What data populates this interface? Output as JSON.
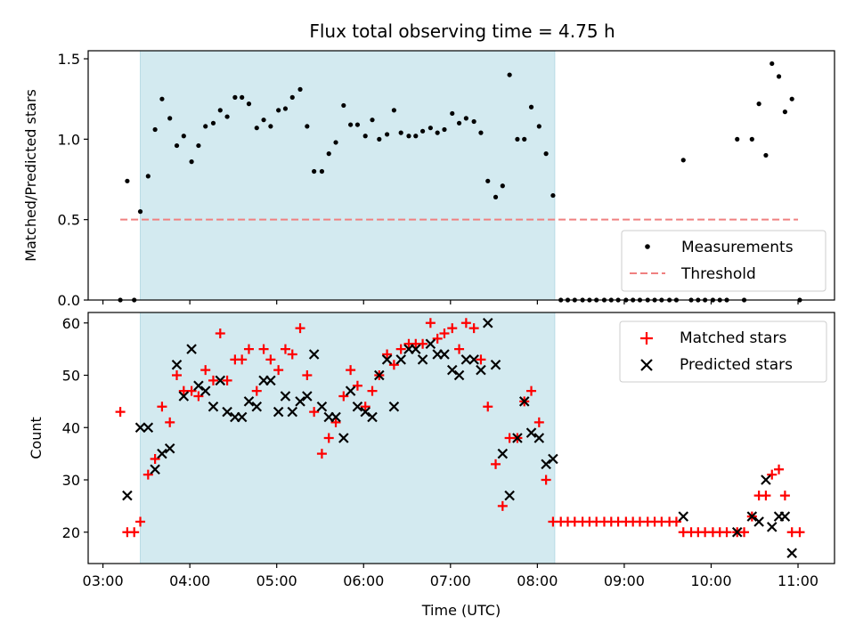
{
  "chart_data": [
    {
      "type": "scatter",
      "title": "Flux total observing time = 4.75 h",
      "xlabel": "",
      "ylabel": "Matched/Predicted stars",
      "xlim": [
        2.83,
        11.42
      ],
      "ylim": [
        0,
        1.55
      ],
      "yticks": [
        0,
        0.5,
        1.0,
        1.5
      ],
      "ytick_labels": [
        "0.0",
        "0.5",
        "1.0",
        "1.5"
      ],
      "xticks": [
        3,
        4,
        5,
        6,
        7,
        8,
        9,
        10,
        11
      ],
      "shaded_span": [
        3.43,
        8.2
      ],
      "shade_color": "#d3eaf0",
      "legend": {
        "position": "lower right",
        "entries": [
          "Measurements",
          "Threshold"
        ]
      },
      "threshold": {
        "name": "Threshold",
        "y": 0.5,
        "x": [
          3.2,
          11.0
        ],
        "color": "#f08080"
      },
      "series": [
        {
          "name": "Measurements",
          "color": "#000000",
          "points": [
            [
              3.2,
              0.0
            ],
            [
              3.28,
              0.74
            ],
            [
              3.36,
              0.0
            ],
            [
              3.43,
              0.55
            ],
            [
              3.52,
              0.77
            ],
            [
              3.6,
              1.06
            ],
            [
              3.68,
              1.25
            ],
            [
              3.77,
              1.13
            ],
            [
              3.85,
              0.96
            ],
            [
              3.93,
              1.02
            ],
            [
              4.02,
              0.86
            ],
            [
              4.1,
              0.96
            ],
            [
              4.18,
              1.08
            ],
            [
              4.27,
              1.1
            ],
            [
              4.35,
              1.18
            ],
            [
              4.43,
              1.14
            ],
            [
              4.52,
              1.26
            ],
            [
              4.6,
              1.26
            ],
            [
              4.68,
              1.22
            ],
            [
              4.77,
              1.07
            ],
            [
              4.85,
              1.12
            ],
            [
              4.93,
              1.08
            ],
            [
              5.02,
              1.18
            ],
            [
              5.1,
              1.19
            ],
            [
              5.18,
              1.26
            ],
            [
              5.27,
              1.31
            ],
            [
              5.35,
              1.08
            ],
            [
              5.43,
              0.8
            ],
            [
              5.52,
              0.8
            ],
            [
              5.6,
              0.91
            ],
            [
              5.68,
              0.98
            ],
            [
              5.77,
              1.21
            ],
            [
              5.85,
              1.09
            ],
            [
              5.93,
              1.09
            ],
            [
              6.02,
              1.02
            ],
            [
              6.1,
              1.12
            ],
            [
              6.18,
              1.0
            ],
            [
              6.27,
              1.03
            ],
            [
              6.35,
              1.18
            ],
            [
              6.43,
              1.04
            ],
            [
              6.52,
              1.02
            ],
            [
              6.6,
              1.02
            ],
            [
              6.68,
              1.05
            ],
            [
              6.77,
              1.07
            ],
            [
              6.85,
              1.04
            ],
            [
              6.93,
              1.06
            ],
            [
              7.02,
              1.16
            ],
            [
              7.1,
              1.1
            ],
            [
              7.18,
              1.13
            ],
            [
              7.27,
              1.11
            ],
            [
              7.35,
              1.04
            ],
            [
              7.43,
              0.74
            ],
            [
              7.52,
              0.64
            ],
            [
              7.6,
              0.71
            ],
            [
              7.68,
              1.4
            ],
            [
              7.77,
              1.0
            ],
            [
              7.85,
              1.0
            ],
            [
              7.93,
              1.2
            ],
            [
              8.02,
              1.08
            ],
            [
              8.1,
              0.91
            ],
            [
              8.18,
              0.65
            ],
            [
              8.27,
              0.0
            ],
            [
              8.35,
              0.0
            ],
            [
              8.43,
              0.0
            ],
            [
              8.52,
              0.0
            ],
            [
              8.6,
              0.0
            ],
            [
              8.68,
              0.0
            ],
            [
              8.77,
              0.0
            ],
            [
              8.85,
              0.0
            ],
            [
              8.93,
              0.0
            ],
            [
              9.02,
              0.0
            ],
            [
              9.1,
              0.0
            ],
            [
              9.18,
              0.0
            ],
            [
              9.27,
              0.0
            ],
            [
              9.35,
              0.0
            ],
            [
              9.43,
              0.0
            ],
            [
              9.52,
              0.0
            ],
            [
              9.6,
              0.0
            ],
            [
              9.68,
              0.87
            ],
            [
              9.77,
              0.0
            ],
            [
              9.85,
              0.0
            ],
            [
              9.93,
              0.0
            ],
            [
              10.02,
              0.0
            ],
            [
              10.1,
              0.0
            ],
            [
              10.18,
              0.0
            ],
            [
              10.3,
              1.0
            ],
            [
              10.38,
              0.0
            ],
            [
              10.47,
              1.0
            ],
            [
              10.55,
              1.22
            ],
            [
              10.63,
              0.9
            ],
            [
              10.7,
              1.47
            ],
            [
              10.78,
              1.39
            ],
            [
              10.85,
              1.17
            ],
            [
              10.93,
              1.25
            ],
            [
              11.02,
              0.0
            ]
          ]
        }
      ]
    },
    {
      "type": "scatter",
      "title": "",
      "xlabel": "Time (UTC)",
      "ylabel": "Count",
      "xlim": [
        2.83,
        11.42
      ],
      "ylim": [
        14,
        62
      ],
      "yticks": [
        20,
        30,
        40,
        50,
        60
      ],
      "ytick_labels": [
        "20",
        "30",
        "40",
        "50",
        "60"
      ],
      "xticks": [
        3,
        4,
        5,
        6,
        7,
        8,
        9,
        10,
        11
      ],
      "xtick_labels": [
        "03:00",
        "04:00",
        "05:00",
        "06:00",
        "07:00",
        "08:00",
        "09:00",
        "10:00",
        "11:00"
      ],
      "shaded_span": [
        3.43,
        8.2
      ],
      "shade_color": "#d3eaf0",
      "legend": {
        "position": "upper right",
        "entries": [
          "Matched stars",
          "Predicted stars"
        ]
      },
      "series": [
        {
          "name": "Matched stars",
          "marker": "plus",
          "color": "#ff0000",
          "points": [
            [
              3.2,
              43
            ],
            [
              3.28,
              20
            ],
            [
              3.36,
              20
            ],
            [
              3.43,
              22
            ],
            [
              3.52,
              31
            ],
            [
              3.6,
              34
            ],
            [
              3.68,
              44
            ],
            [
              3.77,
              41
            ],
            [
              3.85,
              50
            ],
            [
              3.93,
              47
            ],
            [
              4.02,
              47
            ],
            [
              4.1,
              46
            ],
            [
              4.18,
              51
            ],
            [
              4.27,
              49
            ],
            [
              4.35,
              58
            ],
            [
              4.43,
              49
            ],
            [
              4.52,
              53
            ],
            [
              4.6,
              53
            ],
            [
              4.68,
              55
            ],
            [
              4.77,
              47
            ],
            [
              4.85,
              55
            ],
            [
              4.93,
              53
            ],
            [
              5.02,
              51
            ],
            [
              5.1,
              55
            ],
            [
              5.18,
              54
            ],
            [
              5.27,
              59
            ],
            [
              5.35,
              50
            ],
            [
              5.43,
              43
            ],
            [
              5.52,
              35
            ],
            [
              5.6,
              38
            ],
            [
              5.68,
              41
            ],
            [
              5.77,
              46
            ],
            [
              5.85,
              51
            ],
            [
              5.93,
              48
            ],
            [
              6.02,
              44
            ],
            [
              6.1,
              47
            ],
            [
              6.18,
              50
            ],
            [
              6.27,
              54
            ],
            [
              6.35,
              52
            ],
            [
              6.43,
              55
            ],
            [
              6.52,
              56
            ],
            [
              6.6,
              56
            ],
            [
              6.68,
              56
            ],
            [
              6.77,
              60
            ],
            [
              6.85,
              57
            ],
            [
              6.93,
              58
            ],
            [
              7.02,
              59
            ],
            [
              7.1,
              55
            ],
            [
              7.18,
              60
            ],
            [
              7.27,
              59
            ],
            [
              7.35,
              53
            ],
            [
              7.43,
              44
            ],
            [
              7.52,
              33
            ],
            [
              7.6,
              25
            ],
            [
              7.68,
              38
            ],
            [
              7.77,
              38
            ],
            [
              7.85,
              45
            ],
            [
              7.93,
              47
            ],
            [
              8.02,
              41
            ],
            [
              8.1,
              30
            ],
            [
              8.18,
              22
            ],
            [
              8.27,
              22
            ],
            [
              8.35,
              22
            ],
            [
              8.43,
              22
            ],
            [
              8.52,
              22
            ],
            [
              8.6,
              22
            ],
            [
              8.68,
              22
            ],
            [
              8.77,
              22
            ],
            [
              8.85,
              22
            ],
            [
              8.93,
              22
            ],
            [
              9.02,
              22
            ],
            [
              9.1,
              22
            ],
            [
              9.18,
              22
            ],
            [
              9.27,
              22
            ],
            [
              9.35,
              22
            ],
            [
              9.43,
              22
            ],
            [
              9.52,
              22
            ],
            [
              9.6,
              22
            ],
            [
              9.68,
              20
            ],
            [
              9.77,
              20
            ],
            [
              9.85,
              20
            ],
            [
              9.93,
              20
            ],
            [
              10.02,
              20
            ],
            [
              10.1,
              20
            ],
            [
              10.18,
              20
            ],
            [
              10.3,
              20
            ],
            [
              10.38,
              20
            ],
            [
              10.47,
              23
            ],
            [
              10.55,
              27
            ],
            [
              10.63,
              27
            ],
            [
              10.7,
              31
            ],
            [
              10.78,
              32
            ],
            [
              10.85,
              27
            ],
            [
              10.93,
              20
            ],
            [
              11.02,
              20
            ]
          ]
        },
        {
          "name": "Predicted stars",
          "marker": "x",
          "color": "#000000",
          "points": [
            [
              3.28,
              27
            ],
            [
              3.43,
              40
            ],
            [
              3.52,
              40
            ],
            [
              3.6,
              32
            ],
            [
              3.68,
              35
            ],
            [
              3.77,
              36
            ],
            [
              3.85,
              52
            ],
            [
              3.93,
              46
            ],
            [
              4.02,
              55
            ],
            [
              4.1,
              48
            ],
            [
              4.18,
              47
            ],
            [
              4.27,
              44
            ],
            [
              4.35,
              49
            ],
            [
              4.43,
              43
            ],
            [
              4.52,
              42
            ],
            [
              4.6,
              42
            ],
            [
              4.68,
              45
            ],
            [
              4.77,
              44
            ],
            [
              4.85,
              49
            ],
            [
              4.93,
              49
            ],
            [
              5.02,
              43
            ],
            [
              5.1,
              46
            ],
            [
              5.18,
              43
            ],
            [
              5.27,
              45
            ],
            [
              5.35,
              46
            ],
            [
              5.43,
              54
            ],
            [
              5.52,
              44
            ],
            [
              5.6,
              42
            ],
            [
              5.68,
              42
            ],
            [
              5.77,
              38
            ],
            [
              5.85,
              47
            ],
            [
              5.93,
              44
            ],
            [
              6.02,
              43
            ],
            [
              6.1,
              42
            ],
            [
              6.18,
              50
            ],
            [
              6.27,
              53
            ],
            [
              6.35,
              44
            ],
            [
              6.43,
              53
            ],
            [
              6.52,
              55
            ],
            [
              6.6,
              55
            ],
            [
              6.68,
              53
            ],
            [
              6.77,
              56
            ],
            [
              6.85,
              54
            ],
            [
              6.93,
              54
            ],
            [
              7.02,
              51
            ],
            [
              7.1,
              50
            ],
            [
              7.18,
              53
            ],
            [
              7.27,
              53
            ],
            [
              7.35,
              51
            ],
            [
              7.43,
              60
            ],
            [
              7.52,
              52
            ],
            [
              7.6,
              35
            ],
            [
              7.68,
              27
            ],
            [
              7.77,
              38
            ],
            [
              7.85,
              45
            ],
            [
              7.93,
              39
            ],
            [
              8.02,
              38
            ],
            [
              8.1,
              33
            ],
            [
              8.18,
              34
            ],
            [
              9.68,
              23
            ],
            [
              10.3,
              20
            ],
            [
              10.47,
              23
            ],
            [
              10.55,
              22
            ],
            [
              10.63,
              30
            ],
            [
              10.7,
              21
            ],
            [
              10.78,
              23
            ],
            [
              10.85,
              23
            ],
            [
              10.93,
              16
            ]
          ]
        }
      ]
    }
  ]
}
